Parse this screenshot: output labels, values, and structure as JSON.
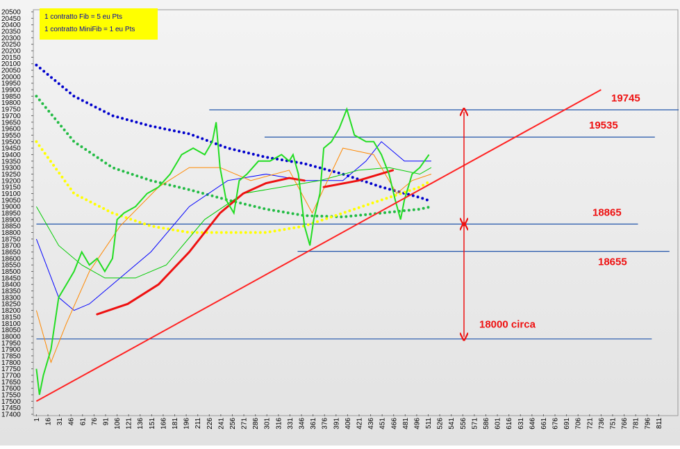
{
  "chart_data": {
    "type": "line",
    "legend_lines": [
      "1 contratto  Fib = 5 eu Pts",
      "1 contratto  MiniFib = 1 eu Pts"
    ],
    "xlim": [
      -3,
      836
    ],
    "ylim": [
      17400,
      20500
    ],
    "xticks": [
      1,
      16,
      31,
      46,
      61,
      76,
      91,
      106,
      121,
      136,
      151,
      166,
      181,
      196,
      211,
      226,
      241,
      256,
      271,
      286,
      301,
      316,
      331,
      346,
      361,
      376,
      391,
      406,
      421,
      436,
      451,
      466,
      481,
      496,
      511,
      526,
      541,
      556,
      571,
      586,
      601,
      616,
      631,
      646,
      661,
      676,
      691,
      706,
      721,
      736,
      751,
      766,
      781,
      796,
      811
    ],
    "yticks": [
      17400,
      17450,
      17500,
      17550,
      17600,
      17650,
      17700,
      17750,
      17800,
      17850,
      17900,
      17950,
      18000,
      18050,
      18100,
      18150,
      18200,
      18250,
      18300,
      18350,
      18400,
      18450,
      18500,
      18550,
      18600,
      18650,
      18700,
      18750,
      18800,
      18850,
      18900,
      18950,
      19000,
      19050,
      19100,
      19150,
      19200,
      19250,
      19300,
      19350,
      19400,
      19450,
      19500,
      19550,
      19600,
      19650,
      19700,
      19750,
      19800,
      19850,
      19900,
      19950,
      20000,
      20050,
      20100,
      20150,
      20200,
      20250,
      20300,
      20350,
      20400,
      20450,
      20500
    ],
    "series": [
      {
        "color": "#0000cc",
        "style": "dotted",
        "x": [
          1,
          50,
          100,
          150,
          200,
          250,
          300,
          350,
          400,
          450,
          500,
          515
        ],
        "values": [
          20090,
          19850,
          19700,
          19620,
          19560,
          19450,
          19380,
          19330,
          19250,
          19150,
          19070,
          19040
        ]
      },
      {
        "color": "#22bb44",
        "style": "dotted",
        "x": [
          1,
          50,
          100,
          150,
          200,
          250,
          300,
          350,
          400,
          450,
          500,
          515
        ],
        "values": [
          19850,
          19500,
          19300,
          19200,
          19130,
          19050,
          18980,
          18930,
          18920,
          18950,
          18980,
          19000
        ]
      },
      {
        "color": "#ffff00",
        "style": "dotted",
        "x": [
          1,
          50,
          100,
          150,
          200,
          250,
          300,
          350,
          400,
          450,
          500,
          515
        ],
        "values": [
          19500,
          19100,
          18950,
          18850,
          18800,
          18800,
          18800,
          18850,
          18950,
          19050,
          19150,
          19200
        ]
      },
      {
        "color": "#0000ff",
        "style": "thin",
        "x": [
          1,
          30,
          50,
          70,
          100,
          150,
          200,
          250,
          300,
          350,
          400,
          430,
          450,
          480,
          515
        ],
        "values": [
          18750,
          18300,
          18200,
          18250,
          18400,
          18650,
          19000,
          19200,
          19250,
          19200,
          19200,
          19350,
          19500,
          19350,
          19350
        ]
      },
      {
        "color": "#00cc00",
        "style": "thin",
        "x": [
          1,
          30,
          60,
          90,
          130,
          170,
          220,
          270,
          320,
          370,
          420,
          460,
          500,
          515
        ],
        "values": [
          19000,
          18700,
          18550,
          18450,
          18450,
          18550,
          18900,
          19100,
          19150,
          19200,
          19280,
          19300,
          19250,
          19300
        ]
      },
      {
        "color": "#ff8800",
        "style": "thin",
        "x": [
          1,
          20,
          40,
          70,
          110,
          160,
          200,
          240,
          280,
          330,
          360,
          380,
          400,
          440,
          470,
          490,
          515
        ],
        "values": [
          18200,
          17800,
          18100,
          18500,
          18850,
          19150,
          19300,
          19300,
          19200,
          19280,
          18950,
          19200,
          19450,
          19400,
          19100,
          19200,
          19250
        ]
      },
      {
        "color": "#ee1111",
        "style": "thick",
        "x": [
          80,
          120,
          160,
          200,
          240,
          270,
          300,
          330,
          350,
          null,
          375,
          420,
          465
        ],
        "values": [
          18170,
          18250,
          18400,
          18650,
          18950,
          19100,
          19180,
          19220,
          19200,
          null,
          19150,
          19200,
          19280
        ]
      },
      {
        "color": "#22dd22",
        "style": "price",
        "x": [
          1,
          5,
          10,
          20,
          30,
          40,
          50,
          60,
          70,
          80,
          90,
          100,
          106,
          115,
          130,
          145,
          160,
          175,
          190,
          205,
          220,
          230,
          235,
          240,
          248,
          258,
          265,
          275,
          290,
          305,
          320,
          330,
          335,
          342,
          350,
          357,
          362,
          370,
          375,
          385,
          395,
          405,
          415,
          430,
          440,
          450,
          460,
          468,
          475,
          480,
          490,
          500,
          512
        ],
        "values": [
          17750,
          17550,
          17700,
          17900,
          18300,
          18400,
          18500,
          18650,
          18550,
          18600,
          18500,
          18600,
          18900,
          18950,
          19000,
          19100,
          19150,
          19250,
          19400,
          19450,
          19400,
          19500,
          19650,
          19300,
          19050,
          18950,
          19200,
          19250,
          19350,
          19350,
          19400,
          19350,
          19400,
          19250,
          18850,
          18700,
          18900,
          19100,
          19450,
          19500,
          19600,
          19750,
          19550,
          19500,
          19500,
          19400,
          19250,
          19050,
          18900,
          19050,
          19250,
          19300,
          19400
        ]
      },
      {
        "color": "#ff2222",
        "style": "trend",
        "x": [
          1,
          736
        ],
        "values": [
          17500,
          19900
        ]
      }
    ],
    "levels": [
      {
        "value": 19745,
        "label": "19745",
        "x": [
          226,
          837
        ]
      },
      {
        "value": 19535,
        "label": "19535",
        "x": [
          298,
          806
        ]
      },
      {
        "value": 18865,
        "label": "18865",
        "x": [
          1,
          784
        ]
      },
      {
        "value": 18655,
        "label": "18655",
        "x": [
          341,
          825
        ]
      },
      {
        "value": 17980,
        "label": "18000 circa",
        "x": [
          1,
          802
        ]
      }
    ]
  }
}
